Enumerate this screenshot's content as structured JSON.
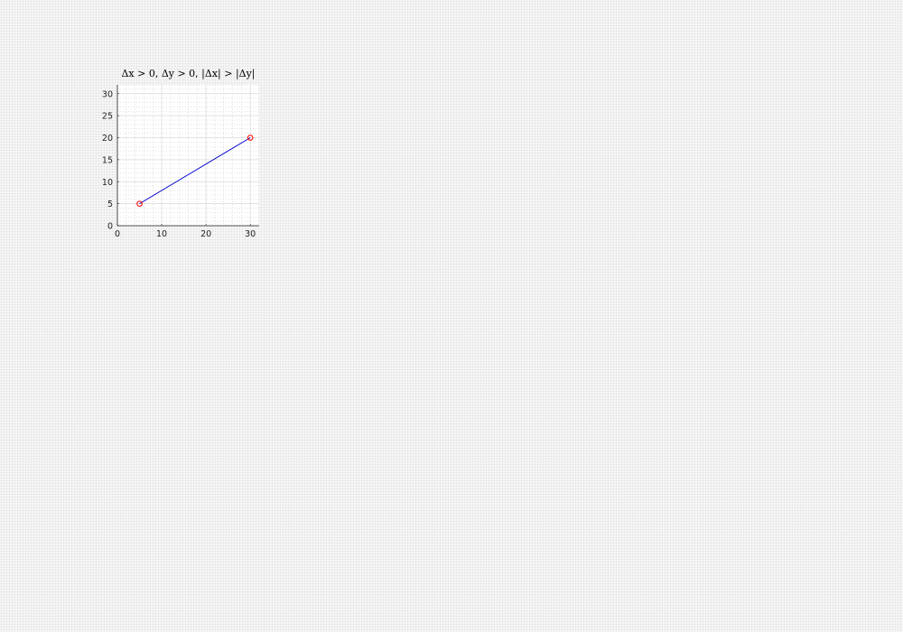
{
  "chart_data": {
    "type": "line",
    "title": "Δx > 0, Δy > 0, |Δx| > |Δy|",
    "xlabel": "",
    "ylabel": "",
    "xlim": [
      0,
      32
    ],
    "ylim": [
      0,
      32
    ],
    "xticks": [
      0,
      10,
      20,
      30
    ],
    "yticks": [
      0,
      5,
      10,
      15,
      20,
      25,
      30
    ],
    "grid": true,
    "minor_grid": true,
    "series": [
      {
        "x": [
          5,
          30
        ],
        "y": [
          5,
          20
        ],
        "line_color": "#0000cc",
        "marker": "circle",
        "marker_color": "#ff0000"
      }
    ]
  }
}
